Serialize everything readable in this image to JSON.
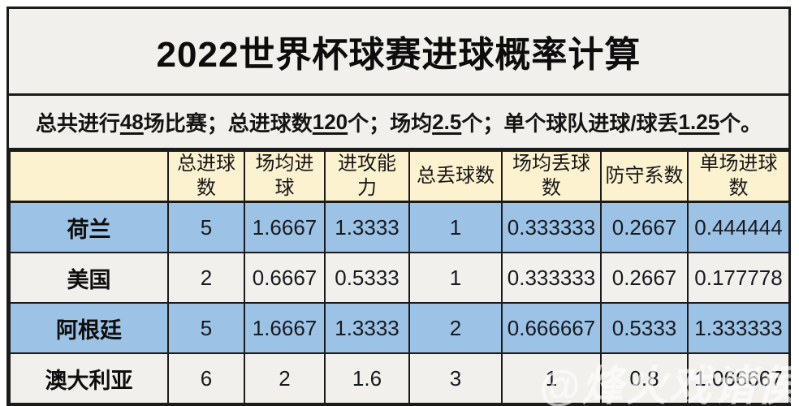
{
  "title": "2022世界杯球赛进球概率计算",
  "subtitle": {
    "segments": [
      {
        "text": "总共进行",
        "underline": false
      },
      {
        "text": "48",
        "underline": true
      },
      {
        "text": "场比赛；总进球数",
        "underline": false
      },
      {
        "text": "120",
        "underline": true
      },
      {
        "text": "个；场均",
        "underline": false
      },
      {
        "text": "2.5",
        "underline": true
      },
      {
        "text": "个；单个球队进球/球丢",
        "underline": false
      },
      {
        "text": "1.25",
        "underline": true
      },
      {
        "text": "个。",
        "underline": false
      }
    ]
  },
  "table": {
    "headers": [
      "",
      "总进球\n数",
      "场均进\n球",
      "进攻能\n力",
      "总丢球数",
      "场均丢球\n数",
      "防守系数",
      "单场进球\n数"
    ],
    "rows": [
      {
        "team": "荷兰",
        "highlight": true,
        "values": [
          "5",
          "1.6667",
          "1.3333",
          "1",
          "0.333333",
          "0.2667",
          "0.444444"
        ]
      },
      {
        "team": "美国",
        "highlight": false,
        "values": [
          "2",
          "0.6667",
          "0.5333",
          "1",
          "0.333333",
          "0.2667",
          "0.177778"
        ]
      },
      {
        "team": "阿根廷",
        "highlight": true,
        "values": [
          "5",
          "1.6667",
          "1.3333",
          "2",
          "0.666667",
          "0.5333",
          "1.333333"
        ]
      },
      {
        "team": "澳大利亚",
        "highlight": false,
        "values": [
          "6",
          "2",
          "1.6",
          "3",
          "1",
          "0.8",
          "1.066667"
        ]
      }
    ]
  },
  "watermark": "@烽火戏诸侯",
  "colors": {
    "row_highlight_blue": "#9cc2e5",
    "header_cream": "#fdf2d0",
    "panel_gray": "#f2f0ec",
    "border_black": "#1b1b1b",
    "watermark_white": "rgba(255,255,255,0.62)"
  },
  "chart_data": {
    "type": "table",
    "title": "2022世界杯球赛进球概率计算",
    "note": "总共进行48场比赛；总进球数120个；场均2.5个；单个球队进球/球丢1.25个。",
    "columns": [
      "球队",
      "总进球数",
      "场均进球",
      "进攻能力",
      "总丢球数",
      "场均丢球数",
      "防守系数",
      "单场进球数"
    ],
    "rows": [
      [
        "荷兰",
        5,
        1.6667,
        1.3333,
        1,
        0.333333,
        0.2667,
        0.444444
      ],
      [
        "美国",
        2,
        0.6667,
        0.5333,
        1,
        0.333333,
        0.2667,
        0.177778
      ],
      [
        "阿根廷",
        5,
        1.6667,
        1.3333,
        2,
        0.666667,
        0.5333,
        1.333333
      ],
      [
        "澳大利亚",
        6,
        2,
        1.6,
        3,
        1,
        0.8,
        1.066667
      ]
    ]
  }
}
